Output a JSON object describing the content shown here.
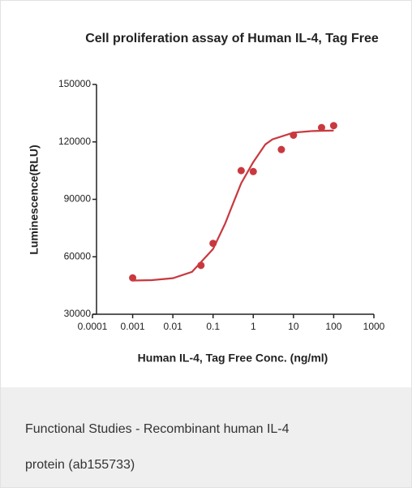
{
  "chart_data": {
    "type": "scatter",
    "title": "Cell proliferation assay of Human IL-4, Tag Free",
    "xlabel": "Human IL-4, Tag Free Conc. (ng/ml)",
    "ylabel": "Luminescence(RLU)",
    "xscale": "log",
    "xlim": [
      0.0001,
      1000
    ],
    "xticks": [
      0.0001,
      0.001,
      0.01,
      0.1,
      1,
      10,
      100,
      1000
    ],
    "ylim": [
      30000,
      150000
    ],
    "yticks": [
      30000,
      60000,
      90000,
      120000,
      150000
    ],
    "series": [
      {
        "type": "scatter",
        "color": "#c8393f",
        "x": [
          0.001,
          0.05,
          0.1,
          0.5,
          1,
          5,
          10,
          50,
          100
        ],
        "values": [
          49000,
          55500,
          67000,
          105000,
          104500,
          116000,
          123500,
          127500,
          128500
        ]
      },
      {
        "type": "line",
        "color": "#c8393f",
        "x": [
          0.001,
          0.003,
          0.01,
          0.03,
          0.1,
          0.2,
          0.3,
          0.5,
          1,
          2,
          3,
          10,
          30,
          100
        ],
        "values": [
          47583,
          47812,
          48804,
          52159,
          64061,
          77382,
          86750,
          98408,
          109457,
          118702,
          121346,
          124848,
          125687,
          125926
        ]
      }
    ]
  },
  "caption": [
    "Functional Studies - Recombinant human IL-4",
    "protein (ab155733)"
  ]
}
